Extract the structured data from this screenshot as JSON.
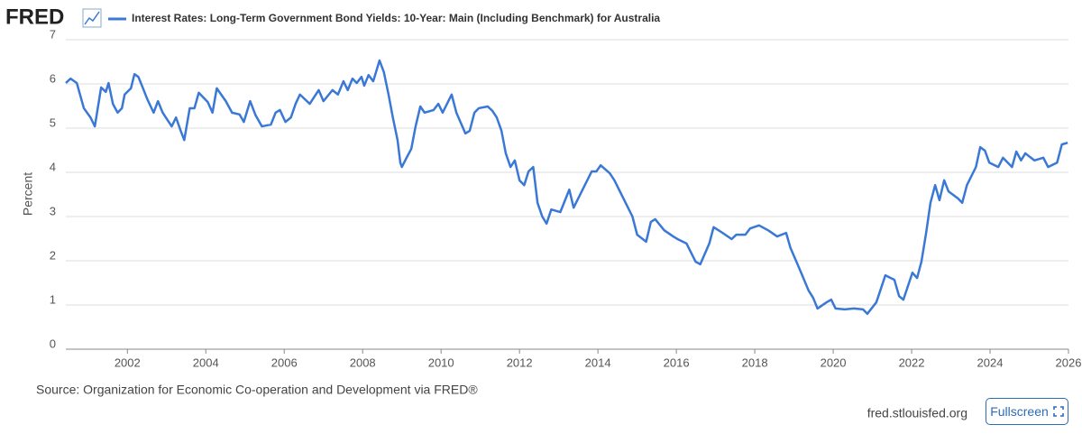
{
  "header": {
    "logo": "FRED"
  },
  "chart_data": {
    "type": "line",
    "ylabel": "Percent",
    "xlim": [
      2000.43,
      2026.0
    ],
    "xticks": [
      2002,
      2004,
      2006,
      2008,
      2010,
      2012,
      2014,
      2016,
      2018,
      2020,
      2022,
      2024,
      2026
    ],
    "ylim": [
      0,
      7
    ],
    "yticks": [
      0,
      1,
      2,
      3,
      4,
      5,
      6,
      7
    ],
    "grid": true,
    "x": [
      2000.43,
      2000.55,
      2000.71,
      2000.89,
      2001.06,
      2001.17,
      2001.33,
      2001.45,
      2001.52,
      2001.63,
      2001.75,
      2001.86,
      2001.93,
      2002.09,
      2002.18,
      2002.28,
      2002.39,
      2002.51,
      2002.67,
      2002.78,
      2002.9,
      2003.13,
      2003.24,
      2003.36,
      2003.45,
      2003.59,
      2003.71,
      2003.82,
      2004.05,
      2004.17,
      2004.28,
      2004.51,
      2004.67,
      2004.86,
      2004.97,
      2005.13,
      2005.27,
      2005.43,
      2005.66,
      2005.78,
      2005.89,
      2006.03,
      2006.17,
      2006.29,
      2006.4,
      2006.65,
      2006.88,
      2007.0,
      2007.23,
      2007.37,
      2007.51,
      2007.62,
      2007.74,
      2007.85,
      2007.97,
      2008.04,
      2008.15,
      2008.27,
      2008.43,
      2008.54,
      2008.66,
      2008.77,
      2008.89,
      2008.96,
      2009.0,
      2009.12,
      2009.24,
      2009.35,
      2009.47,
      2009.58,
      2009.81,
      2009.93,
      2010.04,
      2010.27,
      2010.39,
      2010.62,
      2010.73,
      2010.85,
      2010.96,
      2011.19,
      2011.31,
      2011.42,
      2011.54,
      2011.65,
      2011.77,
      2011.88,
      2012.0,
      2012.12,
      2012.23,
      2012.35,
      2012.46,
      2012.58,
      2012.69,
      2012.81,
      2013.04,
      2013.27,
      2013.38,
      2013.61,
      2013.84,
      2013.96,
      2014.07,
      2014.3,
      2014.42,
      2014.65,
      2014.88,
      2015.0,
      2015.23,
      2015.35,
      2015.46,
      2015.69,
      2015.92,
      2016.03,
      2016.26,
      2016.49,
      2016.61,
      2016.84,
      2016.95,
      2017.18,
      2017.41,
      2017.53,
      2017.76,
      2017.88,
      2018.11,
      2018.34,
      2018.57,
      2018.8,
      2018.91,
      2019.14,
      2019.37,
      2019.49,
      2019.6,
      2019.83,
      2019.95,
      2020.06,
      2020.29,
      2020.53,
      2020.76,
      2020.87,
      2021.1,
      2021.33,
      2021.56,
      2021.68,
      2021.79,
      2022.02,
      2022.14,
      2022.25,
      2022.37,
      2022.48,
      2022.6,
      2022.71,
      2022.83,
      2022.94,
      2023.18,
      2023.29,
      2023.41,
      2023.64,
      2023.75,
      2023.87,
      2023.98,
      2024.21,
      2024.33,
      2024.56,
      2024.67,
      2024.79,
      2024.9,
      2025.13,
      2025.36,
      2025.48,
      2025.71,
      2025.83,
      2025.98
    ],
    "series": [
      {
        "name": "Interest Rates: Long-Term Government Bond Yields: 10-Year: Main (Including Benchmark) for Australia",
        "color": "#3a78d6",
        "values": [
          6.02,
          6.12,
          6.02,
          5.45,
          5.24,
          5.04,
          5.92,
          5.82,
          6.02,
          5.55,
          5.35,
          5.45,
          5.76,
          5.9,
          6.22,
          6.16,
          5.92,
          5.65,
          5.35,
          5.61,
          5.35,
          5.04,
          5.24,
          4.94,
          4.73,
          5.45,
          5.45,
          5.8,
          5.59,
          5.35,
          5.9,
          5.61,
          5.35,
          5.31,
          5.14,
          5.61,
          5.29,
          5.04,
          5.08,
          5.35,
          5.41,
          5.14,
          5.24,
          5.55,
          5.76,
          5.55,
          5.86,
          5.61,
          5.86,
          5.76,
          6.06,
          5.86,
          6.12,
          6.02,
          6.16,
          5.96,
          6.2,
          6.06,
          6.53,
          6.27,
          5.76,
          5.24,
          4.73,
          4.22,
          4.12,
          4.33,
          4.53,
          5.04,
          5.49,
          5.35,
          5.41,
          5.55,
          5.35,
          5.76,
          5.35,
          4.88,
          4.94,
          5.35,
          5.45,
          5.49,
          5.39,
          5.24,
          4.94,
          4.43,
          4.12,
          4.27,
          3.82,
          3.71,
          4.02,
          4.12,
          3.31,
          3.0,
          2.84,
          3.16,
          3.1,
          3.61,
          3.2,
          3.61,
          4.02,
          4.02,
          4.16,
          3.98,
          3.82,
          3.41,
          3.0,
          2.59,
          2.43,
          2.88,
          2.94,
          2.69,
          2.55,
          2.49,
          2.39,
          1.98,
          1.92,
          2.39,
          2.76,
          2.63,
          2.49,
          2.59,
          2.59,
          2.73,
          2.8,
          2.69,
          2.55,
          2.63,
          2.29,
          1.82,
          1.33,
          1.16,
          0.92,
          1.06,
          1.12,
          0.92,
          0.9,
          0.92,
          0.9,
          0.8,
          1.06,
          1.67,
          1.57,
          1.2,
          1.12,
          1.73,
          1.61,
          1.98,
          2.63,
          3.31,
          3.71,
          3.37,
          3.82,
          3.57,
          3.41,
          3.31,
          3.71,
          4.12,
          4.57,
          4.49,
          4.22,
          4.12,
          4.33,
          4.12,
          4.47,
          4.27,
          4.43,
          4.27,
          4.33,
          4.12,
          4.22,
          4.63,
          4.67
        ]
      }
    ]
  },
  "footer": {
    "source": "Source: Organization for Economic Co-operation and Development via FRED®",
    "site": "fred.stlouisfed.org",
    "button": "Fullscreen"
  }
}
